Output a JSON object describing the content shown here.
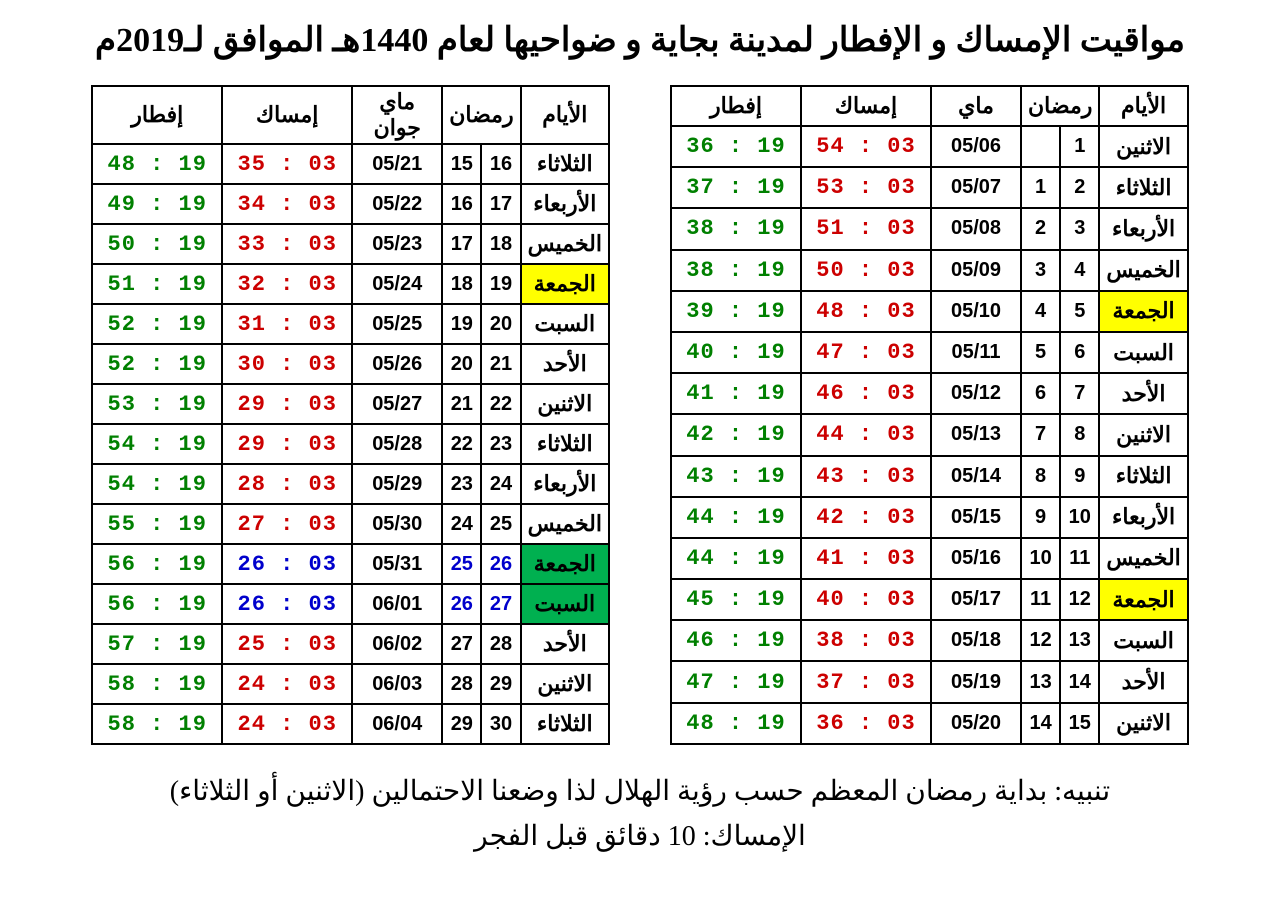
{
  "title": "مواقيت الإمساك و الإفطار لمدينة بجاية و ضواحيها لعام 1440هـ الموافق لـ2019م",
  "headers": {
    "days": "الأيام",
    "ramadan": "رمضان",
    "may": "ماي",
    "may_june": "ماي جوان",
    "imsak": "إمساك",
    "iftar": "إفطار"
  },
  "colors": {
    "imsak": "#cc0000",
    "iftar": "#008000",
    "blue": "#0000cc",
    "highlight_yellow": "#ffff00",
    "highlight_green": "#00b050",
    "border": "#000000",
    "background": "#ffffff"
  },
  "table1": [
    {
      "day": "الاثنين",
      "r1": "1",
      "r2": "",
      "greg": "05/06",
      "imsak": "03 : 54",
      "iftar": "19 : 36",
      "hl": ""
    },
    {
      "day": "الثلاثاء",
      "r1": "2",
      "r2": "1",
      "greg": "05/07",
      "imsak": "03 : 53",
      "iftar": "19 : 37",
      "hl": ""
    },
    {
      "day": "الأربعاء",
      "r1": "3",
      "r2": "2",
      "greg": "05/08",
      "imsak": "03 : 51",
      "iftar": "19 : 38",
      "hl": ""
    },
    {
      "day": "الخميس",
      "r1": "4",
      "r2": "3",
      "greg": "05/09",
      "imsak": "03 : 50",
      "iftar": "19 : 38",
      "hl": ""
    },
    {
      "day": "الجمعة",
      "r1": "5",
      "r2": "4",
      "greg": "05/10",
      "imsak": "03 : 48",
      "iftar": "19 : 39",
      "hl": "yellow"
    },
    {
      "day": "السبت",
      "r1": "6",
      "r2": "5",
      "greg": "05/11",
      "imsak": "03 : 47",
      "iftar": "19 : 40",
      "hl": ""
    },
    {
      "day": "الأحد",
      "r1": "7",
      "r2": "6",
      "greg": "05/12",
      "imsak": "03 : 46",
      "iftar": "19 : 41",
      "hl": ""
    },
    {
      "day": "الاثنين",
      "r1": "8",
      "r2": "7",
      "greg": "05/13",
      "imsak": "03 : 44",
      "iftar": "19 : 42",
      "hl": ""
    },
    {
      "day": "الثلاثاء",
      "r1": "9",
      "r2": "8",
      "greg": "05/14",
      "imsak": "03 : 43",
      "iftar": "19 : 43",
      "hl": ""
    },
    {
      "day": "الأربعاء",
      "r1": "10",
      "r2": "9",
      "greg": "05/15",
      "imsak": "03 : 42",
      "iftar": "19 : 44",
      "hl": ""
    },
    {
      "day": "الخميس",
      "r1": "11",
      "r2": "10",
      "greg": "05/16",
      "imsak": "03 : 41",
      "iftar": "19 : 44",
      "hl": ""
    },
    {
      "day": "الجمعة",
      "r1": "12",
      "r2": "11",
      "greg": "05/17",
      "imsak": "03 : 40",
      "iftar": "19 : 45",
      "hl": "yellow"
    },
    {
      "day": "السبت",
      "r1": "13",
      "r2": "12",
      "greg": "05/18",
      "imsak": "03 : 38",
      "iftar": "19 : 46",
      "hl": ""
    },
    {
      "day": "الأحد",
      "r1": "14",
      "r2": "13",
      "greg": "05/19",
      "imsak": "03 : 37",
      "iftar": "19 : 47",
      "hl": ""
    },
    {
      "day": "الاثنين",
      "r1": "15",
      "r2": "14",
      "greg": "05/20",
      "imsak": "03 : 36",
      "iftar": "19 : 48",
      "hl": ""
    }
  ],
  "table2": [
    {
      "day": "الثلاثاء",
      "r1": "16",
      "r2": "15",
      "greg": "05/21",
      "imsak": "03 : 35",
      "iftar": "19 : 48",
      "hl": ""
    },
    {
      "day": "الأربعاء",
      "r1": "17",
      "r2": "16",
      "greg": "05/22",
      "imsak": "03 : 34",
      "iftar": "19 : 49",
      "hl": ""
    },
    {
      "day": "الخميس",
      "r1": "18",
      "r2": "17",
      "greg": "05/23",
      "imsak": "03 : 33",
      "iftar": "19 : 50",
      "hl": ""
    },
    {
      "day": "الجمعة",
      "r1": "19",
      "r2": "18",
      "greg": "05/24",
      "imsak": "03 : 32",
      "iftar": "19 : 51",
      "hl": "yellow"
    },
    {
      "day": "السبت",
      "r1": "20",
      "r2": "19",
      "greg": "05/25",
      "imsak": "03 : 31",
      "iftar": "19 : 52",
      "hl": ""
    },
    {
      "day": "الأحد",
      "r1": "21",
      "r2": "20",
      "greg": "05/26",
      "imsak": "03 : 30",
      "iftar": "19 : 52",
      "hl": ""
    },
    {
      "day": "الاثنين",
      "r1": "22",
      "r2": "21",
      "greg": "05/27",
      "imsak": "03 : 29",
      "iftar": "19 : 53",
      "hl": ""
    },
    {
      "day": "الثلاثاء",
      "r1": "23",
      "r2": "22",
      "greg": "05/28",
      "imsak": "03 : 29",
      "iftar": "19 : 54",
      "hl": ""
    },
    {
      "day": "الأربعاء",
      "r1": "24",
      "r2": "23",
      "greg": "05/29",
      "imsak": "03 : 28",
      "iftar": "19 : 54",
      "hl": ""
    },
    {
      "day": "الخميس",
      "r1": "25",
      "r2": "24",
      "greg": "05/30",
      "imsak": "03 : 27",
      "iftar": "19 : 55",
      "hl": ""
    },
    {
      "day": "الجمعة",
      "r1": "26",
      "r2": "25",
      "greg": "05/31",
      "imsak": "03 : 26",
      "iftar": "19 : 56",
      "hl": "green",
      "blue": true
    },
    {
      "day": "السبت",
      "r1": "27",
      "r2": "26",
      "greg": "06/01",
      "imsak": "03 : 26",
      "iftar": "19 : 56",
      "hl": "green",
      "blue": true
    },
    {
      "day": "الأحد",
      "r1": "28",
      "r2": "27",
      "greg": "06/02",
      "imsak": "03 : 25",
      "iftar": "19 : 57",
      "hl": ""
    },
    {
      "day": "الاثنين",
      "r1": "29",
      "r2": "28",
      "greg": "06/03",
      "imsak": "03 : 24",
      "iftar": "19 : 58",
      "hl": ""
    },
    {
      "day": "الثلاثاء",
      "r1": "30",
      "r2": "29",
      "greg": "06/04",
      "imsak": "03 : 24",
      "iftar": "19 : 58",
      "hl": ""
    }
  ],
  "notes": {
    "line1": "تنبيه: بداية رمضان المعظم حسب رؤية الهلال لذا وضعنا الاحتمالين (الاثنين أو الثلاثاء)",
    "line2": "الإمساك: 10 دقائق قبل الفجر"
  }
}
